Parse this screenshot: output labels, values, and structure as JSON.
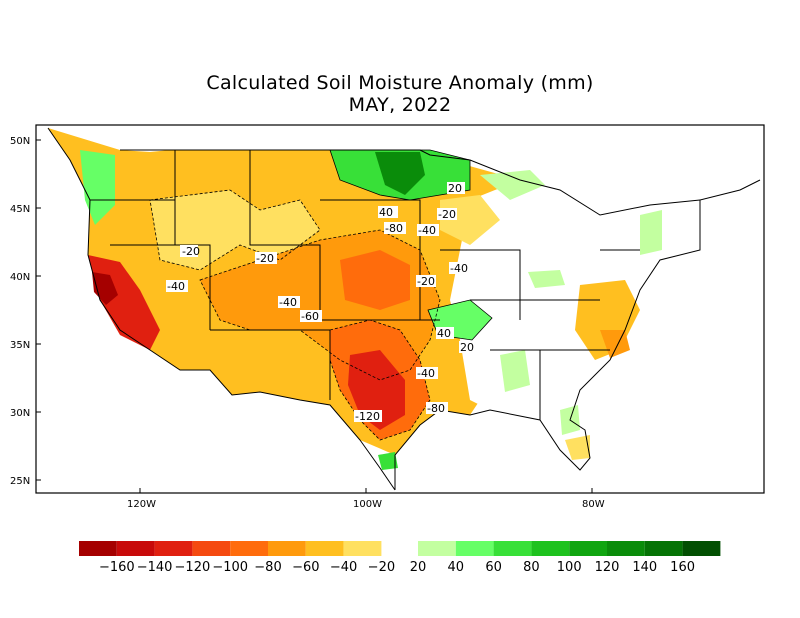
{
  "title": "Calculated Soil Moisture Anomaly (mm)",
  "subtitle": "MAY, 2022",
  "lat_labels": [
    "50N",
    "45N",
    "40N",
    "35N",
    "30N",
    "25N"
  ],
  "lon_labels": [
    "120W",
    "100W",
    "80W"
  ],
  "contour_labels": [
    "-20",
    "-40",
    "-60",
    "-80",
    "-120",
    "20",
    "40"
  ],
  "legend": {
    "negative": {
      "labels": [
        "-160",
        "-140",
        "-120",
        "-100",
        "-80",
        "-60",
        "-40",
        "-20"
      ],
      "colors": [
        "#a50000",
        "#c80a0a",
        "#e02010",
        "#f54a10",
        "#ff6c0c",
        "#ff9a0c",
        "#ffbf20",
        "#ffe060"
      ]
    },
    "positive": {
      "labels": [
        "20",
        "40",
        "60",
        "80",
        "100",
        "120",
        "140",
        "160"
      ],
      "colors": [
        "#c3ffa0",
        "#66ff66",
        "#38e038",
        "#1ec21e",
        "#10a510",
        "#0a8c0a",
        "#057305",
        "#024f02"
      ]
    }
  }
}
